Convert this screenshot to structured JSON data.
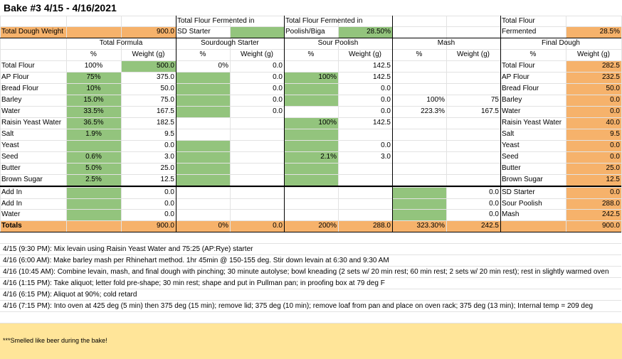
{
  "header": {
    "title": "Bake #3 4/15 - 4/16/2021"
  },
  "table": {
    "rows": [
      [
        null,
        null,
        null,
        "Total Flour Fermented in",
        null,
        "Total Flour Fermented in",
        null,
        null,
        null,
        "Total Flour",
        null
      ],
      [
        "Total Dough Weight",
        null,
        "900.0",
        "SD Starter",
        null,
        "Poolish/Biga",
        "28.50%",
        null,
        null,
        "Fermented",
        "28.5%"
      ],
      [
        null,
        "Total Formula",
        null,
        "Sourdough Starter",
        null,
        "Sour Poolish",
        null,
        "Mash",
        null,
        "Final Dough",
        null
      ],
      [
        null,
        "%",
        "Weight (g)",
        "%",
        "Weight (g)",
        "%",
        "Weight (g)",
        "%",
        "Weight (g)",
        "%",
        "Weight (g)"
      ],
      [
        "Total Flour",
        "100%",
        "500.0",
        "0%",
        "0.0",
        null,
        "142.5",
        null,
        null,
        "Total Flour",
        "282.5"
      ],
      [
        "AP Flour",
        "75%",
        "375.0",
        null,
        "0.0",
        "100%",
        "142.5",
        null,
        null,
        "AP Flour",
        "232.5"
      ],
      [
        "Bread Flour",
        "10%",
        "50.0",
        null,
        "0.0",
        null,
        "0.0",
        null,
        null,
        "Bread Flour",
        "50.0"
      ],
      [
        "Barley",
        "15.0%",
        "75.0",
        null,
        "0.0",
        null,
        "0.0",
        "100%",
        "75",
        "Barley",
        "0.0"
      ],
      [
        "Water",
        "33.5%",
        "167.5",
        null,
        "0.0",
        null,
        "0.0",
        "223.3%",
        "167.5",
        "Water",
        "0.0"
      ],
      [
        "Raisin Yeast Water",
        "36.5%",
        "182.5",
        null,
        null,
        "100%",
        "142.5",
        null,
        null,
        "Raisin Yeast Water",
        "40.0"
      ],
      [
        "Salt",
        "1.9%",
        "9.5",
        null,
        null,
        null,
        null,
        null,
        null,
        "Salt",
        "9.5"
      ],
      [
        "Yeast",
        null,
        "0.0",
        null,
        null,
        null,
        "0.0",
        null,
        null,
        "Yeast",
        "0.0"
      ],
      [
        "Seed",
        "0.6%",
        "3.0",
        null,
        null,
        "2.1%",
        "3.0",
        null,
        null,
        "Seed",
        "0.0"
      ],
      [
        "Butter",
        "5.0%",
        "25.0",
        null,
        null,
        null,
        null,
        null,
        null,
        "Butter",
        "25.0"
      ],
      [
        "Brown Sugar",
        "2.5%",
        "12.5",
        null,
        null,
        null,
        null,
        null,
        null,
        "Brown Sugar",
        "12.5"
      ],
      [
        "Add In",
        null,
        "0.0",
        null,
        null,
        null,
        null,
        null,
        "0.0",
        "SD Starter",
        "0.0"
      ],
      [
        "Add In",
        null,
        "0.0",
        null,
        null,
        null,
        null,
        null,
        "0.0",
        "Sour Poolish",
        "288.0"
      ],
      [
        "Water",
        null,
        "0.0",
        null,
        null,
        null,
        null,
        null,
        "0.0",
        "Mash",
        "242.5"
      ],
      [
        "Totals",
        null,
        "900.0",
        "0%",
        "0.0",
        "200%",
        "288.0",
        "323.30%",
        "242.5",
        null,
        "900.0"
      ]
    ]
  },
  "notes": [
    "4/15 (9:30 PM): Mix levain using Raisin Yeast Water and 75:25 (AP:Rye) starter",
    "4/16 (6:00 AM): Make barley mash per Rhinehart method.  1hr 45min @ 150-155 deg.  Stir down levain at 6:30 and 9:30 AM",
    "4/16 (10:45 AM): Combine levain, mash, and final dough with pinching; 30 minute autolyse; bowl kneading (2 sets w/ 20 min rest; 60 min rest; 2 sets w/ 20 min rest); rest in slightly warmed oven",
    "4/16 (1:15 PM): Take aliquot; letter fold pre-shape; 30 min rest; shape and put in Pullman pan; in proofing box at 79 deg F",
    "4/16 (6:15 PM): Aliquot at 90%; cold retard",
    "4/16 (7:15 PM): Into oven at 425 deg (5 min) then 375 deg (15 min); remove lid; 375 deg (10 min); remove loaf from pan and place on oven rack; 375 deg (13 min); Internal temp = 209 deg"
  ],
  "footer": {
    "note": "***Smelled like beer during the bake!"
  }
}
